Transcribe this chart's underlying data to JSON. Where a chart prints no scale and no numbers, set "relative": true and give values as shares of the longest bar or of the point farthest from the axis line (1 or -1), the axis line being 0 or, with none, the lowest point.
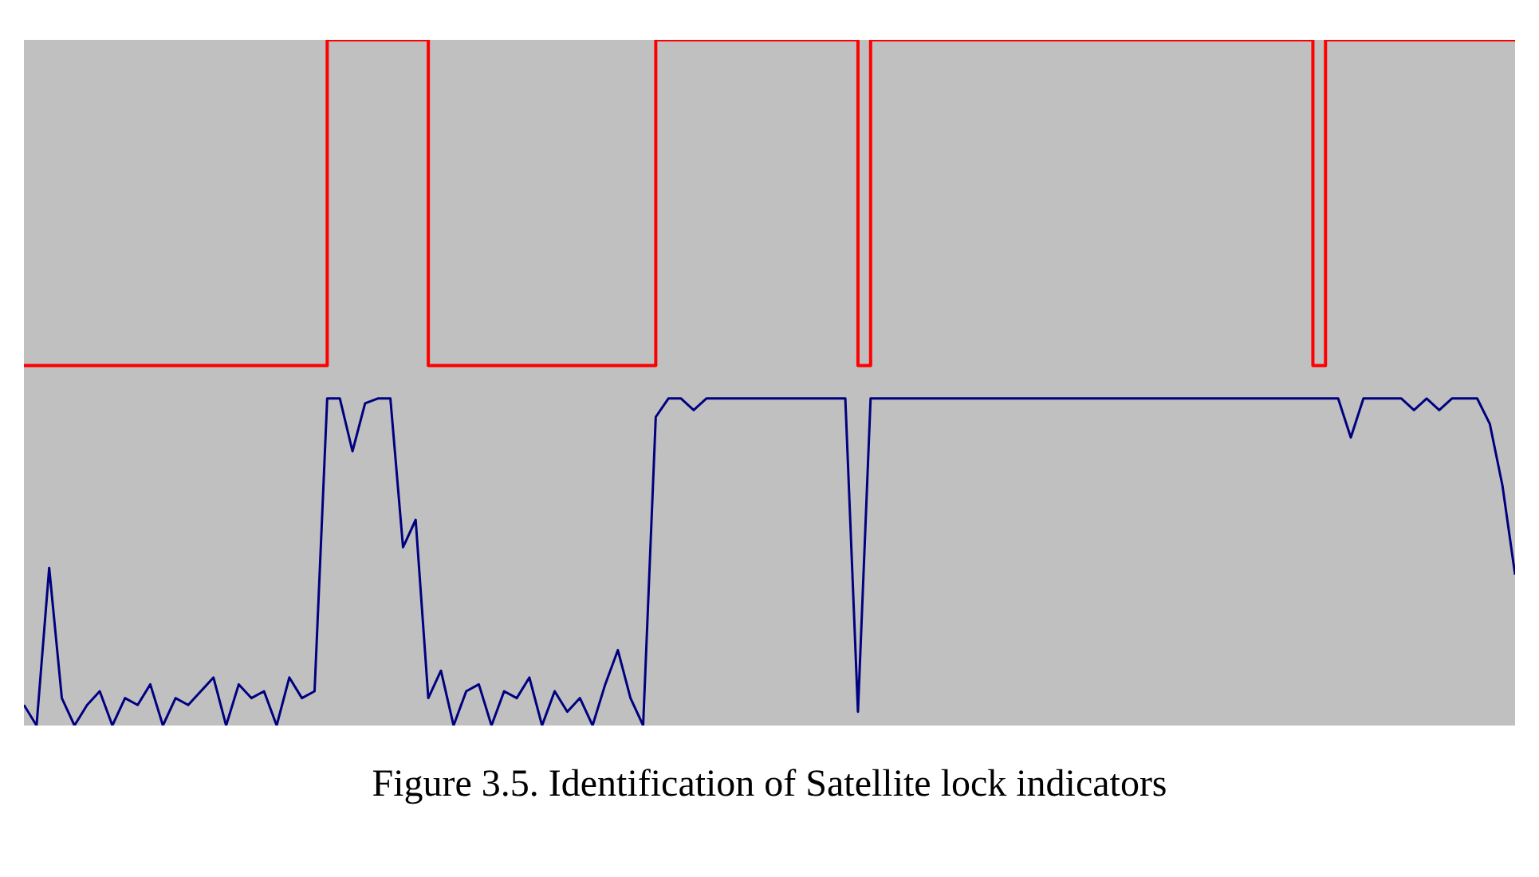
{
  "chart_data": {
    "type": "step",
    "relative": true,
    "title": "Figure 3.5. Identification of Satellite lock indicators",
    "categories": [
      null,
      null,
      null,
      null,
      null,
      null,
      null,
      null,
      null,
      null,
      null,
      null,
      null,
      null,
      null,
      null,
      null,
      null,
      null,
      null,
      null,
      null,
      null,
      null,
      null,
      null,
      null,
      null,
      null,
      null,
      null,
      null,
      null,
      null,
      null,
      null,
      null,
      null,
      null,
      null,
      null,
      null,
      null,
      null,
      null,
      null,
      null,
      null,
      null,
      null,
      null,
      null,
      null,
      null,
      null,
      null,
      null,
      null,
      null,
      null,
      null,
      null,
      null,
      null,
      null,
      null,
      null,
      null,
      null,
      null,
      null,
      null,
      null,
      null,
      null,
      null,
      null,
      null,
      null,
      null,
      null,
      null,
      null,
      null,
      null,
      null,
      null,
      null,
      null,
      null,
      null,
      null,
      null,
      null,
      null,
      null,
      null,
      null,
      null,
      null,
      null,
      null,
      null,
      null,
      null,
      null,
      null,
      null,
      null,
      null,
      null,
      null,
      null,
      null,
      null,
      null,
      null,
      null,
      null
    ],
    "series": [
      {
        "color": "#ff0000",
        "values": [
          0.525,
          0.525,
          0.525,
          0.525,
          0.525,
          0.525,
          0.525,
          0.525,
          0.525,
          0.525,
          0.525,
          0.525,
          0.525,
          0.525,
          0.525,
          0.525,
          0.525,
          0.525,
          0.525,
          0.525,
          0.525,
          0.525,
          0.525,
          0.525,
          1,
          1,
          1,
          1,
          1,
          1,
          1,
          1,
          0.525,
          0.525,
          0.525,
          0.525,
          0.525,
          0.525,
          0.525,
          0.525,
          0.525,
          0.525,
          0.525,
          0.525,
          0.525,
          0.525,
          0.525,
          0.525,
          0.525,
          0.525,
          1,
          1,
          1,
          1,
          1,
          1,
          1,
          1,
          1,
          1,
          1,
          1,
          1,
          1,
          1,
          1,
          0.525,
          1,
          1,
          1,
          1,
          1,
          1,
          1,
          1,
          1,
          1,
          1,
          1,
          1,
          1,
          1,
          1,
          1,
          1,
          1,
          1,
          1,
          1,
          1,
          1,
          1,
          1,
          1,
          1,
          1,
          1,
          1,
          1,
          1,
          1,
          1,
          0.525,
          1,
          1,
          1,
          1,
          1,
          1,
          1,
          1,
          1,
          1,
          1,
          1,
          1,
          1,
          1,
          1
        ]
      },
      {
        "type": "line",
        "color": "#000080",
        "values": [
          0.03,
          0,
          0.23,
          0.04,
          0,
          0.03,
          0.05,
          0,
          0.04,
          0.03,
          0.06,
          0,
          0.04,
          0.03,
          0.05,
          0.07,
          0,
          0.06,
          0.04,
          0.05,
          0,
          0.07,
          0.04,
          0.05,
          0.477,
          0.477,
          0.4,
          0.47,
          0.477,
          0.477,
          0.26,
          0.3,
          0.04,
          0.08,
          0,
          0.05,
          0.06,
          0,
          0.05,
          0.04,
          0.07,
          0,
          0.05,
          0.02,
          0.04,
          0,
          0.06,
          0.11,
          0.04,
          0,
          0.45,
          0.477,
          0.477,
          0.46,
          0.477,
          0.477,
          0.477,
          0.477,
          0.477,
          0.477,
          0.477,
          0.477,
          0.477,
          0.477,
          0.477,
          0.477,
          0.02,
          0.477,
          0.477,
          0.477,
          0.477,
          0.477,
          0.477,
          0.477,
          0.477,
          0.477,
          0.477,
          0.477,
          0.477,
          0.477,
          0.477,
          0.477,
          0.477,
          0.477,
          0.477,
          0.477,
          0.477,
          0.477,
          0.477,
          0.477,
          0.477,
          0.477,
          0.477,
          0.477,
          0.477,
          0.477,
          0.477,
          0.477,
          0.477,
          0.477,
          0.477,
          0.477,
          0.477,
          0.477,
          0.477,
          0.42,
          0.477,
          0.477,
          0.477,
          0.477,
          0.46,
          0.477,
          0.46,
          0.477,
          0.477,
          0.477,
          0.44,
          0.35,
          0.22
        ]
      }
    ]
  }
}
